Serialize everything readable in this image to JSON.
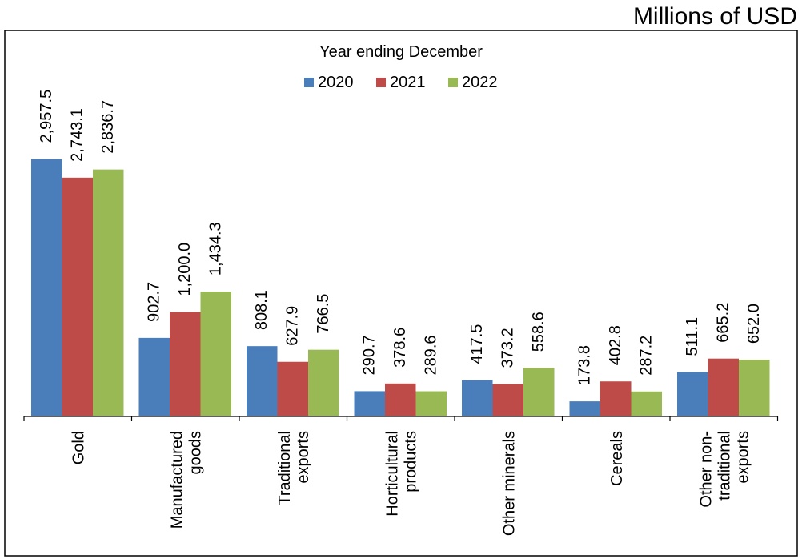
{
  "unit_label": "Millions of USD",
  "chart_data": {
    "type": "bar",
    "title": "Year ending December",
    "xlabel": "",
    "ylabel": "",
    "ylim": [
      0,
      3000
    ],
    "grid": false,
    "legend_position": "top-center",
    "categories": [
      [
        "Gold"
      ],
      [
        "Manufactured",
        "goods"
      ],
      [
        "Traditional",
        "exports"
      ],
      [
        "Horticultural",
        "products"
      ],
      [
        "Other minerals"
      ],
      [
        "Cereals"
      ],
      [
        "Other non-",
        "traditional",
        "exports"
      ]
    ],
    "series": [
      {
        "name": "2020",
        "color": "#4A7EBB",
        "values": [
          2957.5,
          902.7,
          808.1,
          290.7,
          417.5,
          173.8,
          511.1
        ],
        "labels": [
          "2,957.5",
          "902.7",
          "808.1",
          "290.7",
          "417.5",
          "173.8",
          "511.1"
        ]
      },
      {
        "name": "2021",
        "color": "#BE4B48",
        "values": [
          2743.1,
          1200.0,
          627.9,
          378.6,
          373.2,
          402.8,
          665.2
        ],
        "labels": [
          "2,743.1",
          "1,200.0",
          "627.9",
          "378.6",
          "373.2",
          "402.8",
          "665.2"
        ]
      },
      {
        "name": "2022",
        "color": "#98B954",
        "values": [
          2836.7,
          1434.3,
          766.5,
          289.6,
          558.6,
          287.2,
          652.0
        ],
        "labels": [
          "2,836.7",
          "1,434.3",
          "766.5",
          "289.6",
          "558.6",
          "287.2",
          "652.0"
        ]
      }
    ]
  }
}
